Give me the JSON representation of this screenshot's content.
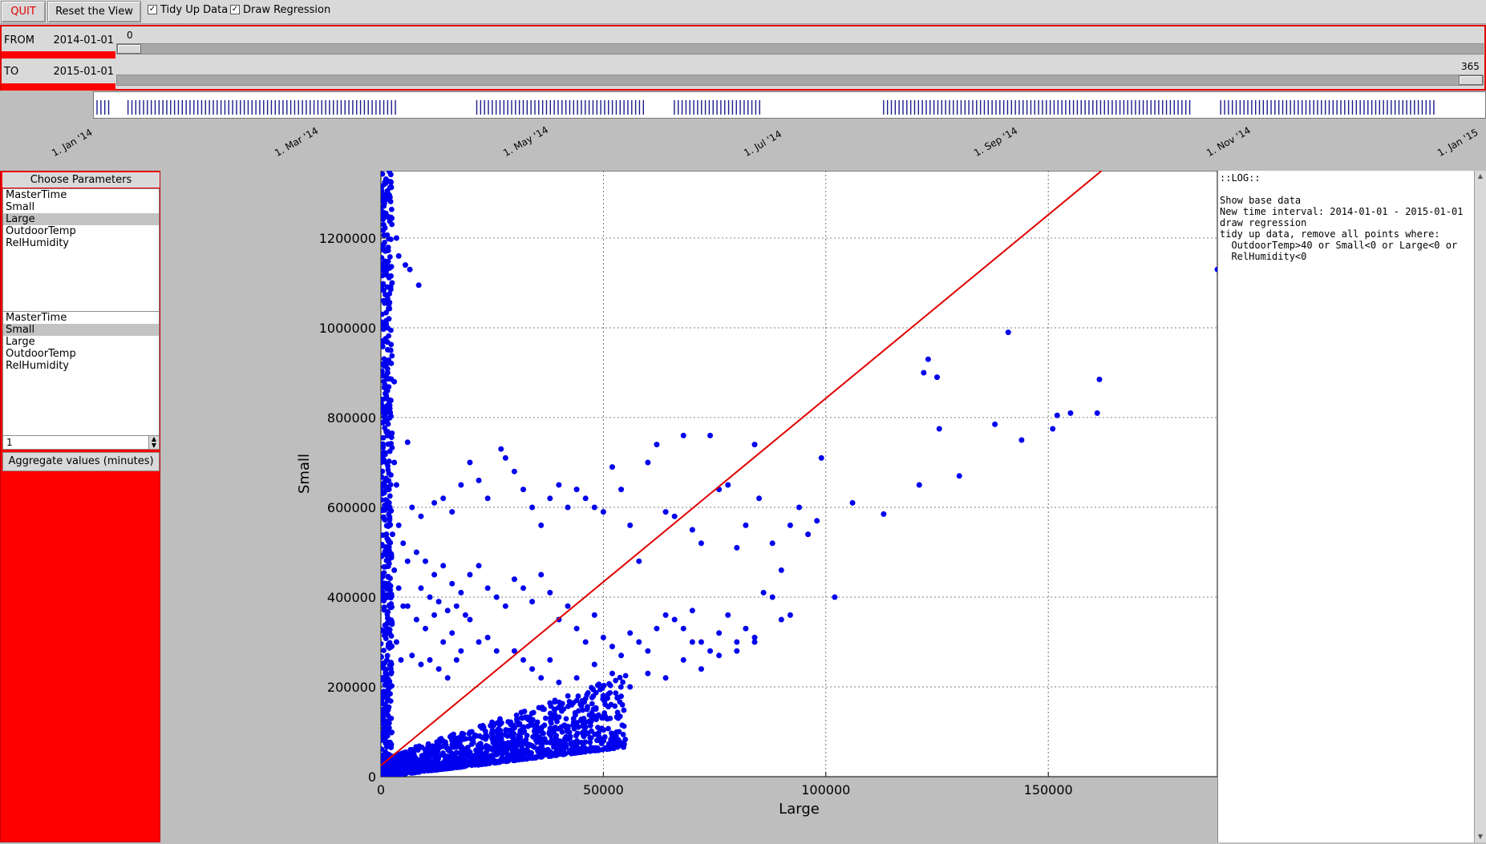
{
  "toolbar": {
    "quit_label": "QUIT",
    "reset_label": "Reset the View",
    "tidy_label": "Tidy Up Data",
    "tidy_checked": true,
    "regression_label": "Draw Regression",
    "regression_checked": true
  },
  "range": {
    "from_label": "FROM",
    "from_date": "2014-01-01",
    "from_value": "0",
    "to_label": "TO",
    "to_date": "2015-01-01",
    "to_value": "365",
    "max_days": 365
  },
  "timeline": {
    "labels": [
      "1. Jan '14",
      "1. Mar '14",
      "1. May '14",
      "1. Jul '14",
      "1. Sep '14",
      "1. Nov '14",
      "1. Jan '15"
    ]
  },
  "params": {
    "title": "Choose Parameters",
    "x_list": [
      "MasterTime",
      "Small",
      "Large",
      "OutdoorTemp",
      "RelHumidity"
    ],
    "x_selected": 2,
    "y_list": [
      "MasterTime",
      "Small",
      "Large",
      "OutdoorTemp",
      "RelHumidity"
    ],
    "y_selected": 1,
    "aggregate_value": "1",
    "aggregate_label": "Aggregate values (minutes)"
  },
  "log": {
    "lines": [
      "::LOG::",
      "",
      "Show base data",
      "New time interval: 2014-01-01 - 2015-01-01",
      "draw regression",
      "tidy up data, remove all points where:",
      "  OutdoorTemp>40 or Small<0 or Large<0 or",
      "  RelHumidity<0"
    ]
  },
  "colors": {
    "accent_red": "#ff0000",
    "point_blue": "#0000ee",
    "regression_red": "#e00000"
  },
  "chart_data": {
    "type": "scatter",
    "xlabel": "Large",
    "ylabel": "Small",
    "xlim": [
      0,
      188000
    ],
    "ylim": [
      0,
      1350000
    ],
    "x_ticks": [
      "0",
      "50000",
      "100000",
      "150000"
    ],
    "y_ticks": [
      "0",
      "200000",
      "400000",
      "600000",
      "800000",
      "1000000",
      "1200000"
    ],
    "grid": true,
    "regression": {
      "x": [
        0,
        162000
      ],
      "y": [
        25000,
        1350000
      ]
    },
    "points": [
      [
        1200,
        1330000
      ],
      [
        1500,
        1300000
      ],
      [
        800,
        1250000
      ],
      [
        3500,
        1200000
      ],
      [
        4000,
        1160000
      ],
      [
        5500,
        1140000
      ],
      [
        6500,
        1130000
      ],
      [
        8500,
        1095000
      ],
      [
        1000,
        1130000
      ],
      [
        2500,
        1100000
      ],
      [
        1800,
        1020000
      ],
      [
        2200,
        950000
      ],
      [
        3000,
        880000
      ],
      [
        6000,
        745000
      ],
      [
        1500,
        760000
      ],
      [
        7000,
        600000
      ],
      [
        9000,
        580000
      ],
      [
        12000,
        610000
      ],
      [
        14000,
        620000
      ],
      [
        16000,
        590000
      ],
      [
        18000,
        650000
      ],
      [
        20000,
        700000
      ],
      [
        22000,
        660000
      ],
      [
        24000,
        620000
      ],
      [
        27000,
        730000
      ],
      [
        28000,
        710000
      ],
      [
        30000,
        680000
      ],
      [
        32000,
        640000
      ],
      [
        34000,
        600000
      ],
      [
        36000,
        560000
      ],
      [
        38000,
        620000
      ],
      [
        40000,
        650000
      ],
      [
        42000,
        600000
      ],
      [
        44000,
        640000
      ],
      [
        46000,
        620000
      ],
      [
        48000,
        600000
      ],
      [
        50000,
        590000
      ],
      [
        52000,
        690000
      ],
      [
        54000,
        640000
      ],
      [
        56000,
        560000
      ],
      [
        58000,
        480000
      ],
      [
        60000,
        700000
      ],
      [
        62000,
        740000
      ],
      [
        64000,
        590000
      ],
      [
        66000,
        580000
      ],
      [
        68000,
        760000
      ],
      [
        70000,
        550000
      ],
      [
        72000,
        520000
      ],
      [
        74000,
        760000
      ],
      [
        76000,
        640000
      ],
      [
        78000,
        650000
      ],
      [
        80000,
        510000
      ],
      [
        82000,
        560000
      ],
      [
        84000,
        740000
      ],
      [
        85000,
        620000
      ],
      [
        88000,
        520000
      ],
      [
        90000,
        460000
      ],
      [
        92000,
        560000
      ],
      [
        94000,
        600000
      ],
      [
        96000,
        540000
      ],
      [
        98000,
        570000
      ],
      [
        99000,
        710000
      ],
      [
        102000,
        400000
      ],
      [
        106000,
        610000
      ],
      [
        113000,
        585000
      ],
      [
        121000,
        650000
      ],
      [
        122000,
        900000
      ],
      [
        123000,
        930000
      ],
      [
        125000,
        890000
      ],
      [
        125500,
        775000
      ],
      [
        130000,
        670000
      ],
      [
        138000,
        785000
      ],
      [
        141000,
        990000
      ],
      [
        144000,
        750000
      ],
      [
        151000,
        775000
      ],
      [
        152000,
        805000
      ],
      [
        155000,
        810000
      ],
      [
        161000,
        810000
      ],
      [
        161500,
        885000
      ],
      [
        188000,
        1130000
      ],
      [
        8000,
        500000
      ],
      [
        10000,
        480000
      ],
      [
        12000,
        450000
      ],
      [
        14000,
        470000
      ],
      [
        16000,
        430000
      ],
      [
        18000,
        410000
      ],
      [
        20000,
        450000
      ],
      [
        22000,
        470000
      ],
      [
        24000,
        420000
      ],
      [
        26000,
        400000
      ],
      [
        28000,
        380000
      ],
      [
        30000,
        440000
      ],
      [
        32000,
        420000
      ],
      [
        34000,
        390000
      ],
      [
        36000,
        450000
      ],
      [
        38000,
        410000
      ],
      [
        40000,
        350000
      ],
      [
        42000,
        380000
      ],
      [
        44000,
        330000
      ],
      [
        46000,
        300000
      ],
      [
        48000,
        360000
      ],
      [
        50000,
        310000
      ],
      [
        52000,
        290000
      ],
      [
        54000,
        270000
      ],
      [
        56000,
        320000
      ],
      [
        58000,
        300000
      ],
      [
        60000,
        280000
      ],
      [
        62000,
        330000
      ],
      [
        64000,
        360000
      ],
      [
        66000,
        350000
      ],
      [
        68000,
        330000
      ],
      [
        70000,
        370000
      ],
      [
        72000,
        300000
      ],
      [
        74000,
        280000
      ],
      [
        76000,
        320000
      ],
      [
        78000,
        360000
      ],
      [
        80000,
        300000
      ],
      [
        82000,
        330000
      ],
      [
        84000,
        310000
      ],
      [
        86000,
        410000
      ],
      [
        88000,
        400000
      ],
      [
        90000,
        350000
      ],
      [
        92000,
        360000
      ],
      [
        6000,
        380000
      ],
      [
        8000,
        350000
      ],
      [
        10000,
        330000
      ],
      [
        12000,
        360000
      ],
      [
        14000,
        300000
      ],
      [
        16000,
        320000
      ],
      [
        18000,
        280000
      ],
      [
        20000,
        350000
      ],
      [
        22000,
        300000
      ],
      [
        24000,
        310000
      ],
      [
        26000,
        280000
      ],
      [
        9000,
        420000
      ],
      [
        11000,
        400000
      ],
      [
        13000,
        390000
      ],
      [
        15000,
        370000
      ],
      [
        17000,
        380000
      ],
      [
        19000,
        360000
      ],
      [
        7000,
        270000
      ],
      [
        9000,
        250000
      ],
      [
        11000,
        260000
      ],
      [
        13000,
        240000
      ],
      [
        15000,
        220000
      ],
      [
        17000,
        260000
      ],
      [
        30000,
        280000
      ],
      [
        32000,
        260000
      ],
      [
        34000,
        240000
      ],
      [
        36000,
        220000
      ],
      [
        38000,
        260000
      ],
      [
        40000,
        210000
      ],
      [
        44000,
        220000
      ],
      [
        48000,
        250000
      ],
      [
        52000,
        230000
      ],
      [
        56000,
        200000
      ],
      [
        60000,
        230000
      ],
      [
        64000,
        220000
      ],
      [
        68000,
        260000
      ],
      [
        72000,
        240000
      ],
      [
        76000,
        270000
      ],
      [
        80000,
        280000
      ],
      [
        84000,
        300000
      ],
      [
        70000,
        300000
      ],
      [
        3000,
        700000
      ],
      [
        3500,
        650000
      ],
      [
        2000,
        600000
      ],
      [
        4000,
        560000
      ],
      [
        5000,
        520000
      ],
      [
        6000,
        480000
      ],
      [
        3000,
        460000
      ],
      [
        4000,
        420000
      ],
      [
        5000,
        380000
      ],
      [
        2500,
        340000
      ],
      [
        3500,
        300000
      ],
      [
        4500,
        260000
      ],
      [
        1500,
        900000
      ],
      [
        2000,
        820000
      ],
      [
        1200,
        700000
      ],
      [
        1800,
        640000
      ],
      [
        2600,
        540000
      ],
      [
        1500,
        480000
      ]
    ]
  }
}
